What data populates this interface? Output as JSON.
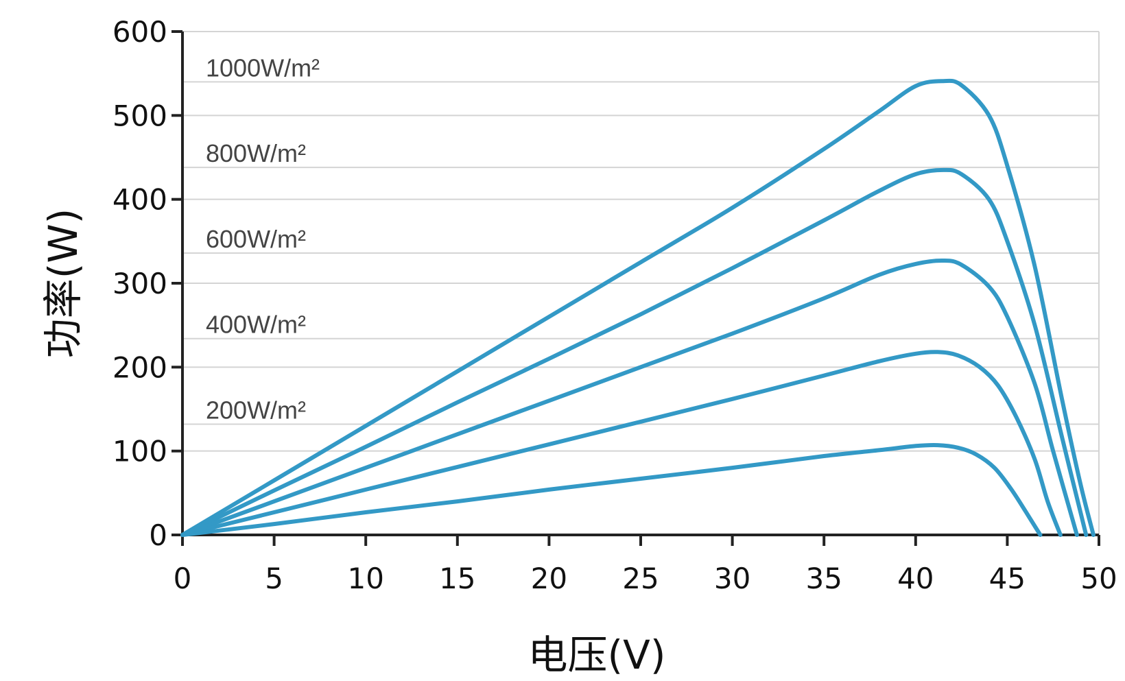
{
  "chart_data": {
    "type": "line",
    "title": "",
    "xlabel": "电压(V)",
    "ylabel": "功率(W)",
    "xlim": [
      0,
      50
    ],
    "ylim": [
      0,
      600
    ],
    "x_ticks": [
      "0",
      "5",
      "10",
      "15",
      "20",
      "25",
      "30",
      "35",
      "40",
      "45",
      "50"
    ],
    "y_ticks": [
      "0",
      "100",
      "200",
      "300",
      "400",
      "500",
      "600"
    ],
    "grid": "horizontal",
    "series_color": "#3399c6",
    "series": [
      {
        "name": "1000W/m²",
        "label_y": 540,
        "points": [
          [
            0,
            0
          ],
          [
            5,
            65
          ],
          [
            10,
            130
          ],
          [
            15,
            195
          ],
          [
            20,
            260
          ],
          [
            25,
            325
          ],
          [
            30,
            390
          ],
          [
            35,
            460
          ],
          [
            38,
            505
          ],
          [
            40,
            535
          ],
          [
            41.5,
            541
          ],
          [
            42.5,
            536
          ],
          [
            44,
            500
          ],
          [
            45,
            440
          ],
          [
            46.5,
            320
          ],
          [
            48,
            160
          ],
          [
            49,
            60
          ],
          [
            49.7,
            0
          ]
        ]
      },
      {
        "name": "800W/m²",
        "label_y": 438,
        "points": [
          [
            0,
            0
          ],
          [
            5,
            53
          ],
          [
            10,
            105
          ],
          [
            15,
            158
          ],
          [
            20,
            210
          ],
          [
            25,
            263
          ],
          [
            30,
            318
          ],
          [
            35,
            375
          ],
          [
            38,
            410
          ],
          [
            40,
            430
          ],
          [
            41.5,
            435
          ],
          [
            42.5,
            430
          ],
          [
            44,
            400
          ],
          [
            45,
            350
          ],
          [
            46.5,
            250
          ],
          [
            48,
            115
          ],
          [
            49.3,
            0
          ]
        ]
      },
      {
        "name": "600W/m²",
        "label_y": 336,
        "points": [
          [
            0,
            0
          ],
          [
            5,
            40
          ],
          [
            10,
            80
          ],
          [
            15,
            120
          ],
          [
            20,
            160
          ],
          [
            25,
            200
          ],
          [
            30,
            240
          ],
          [
            35,
            282
          ],
          [
            38,
            310
          ],
          [
            40,
            323
          ],
          [
            41.5,
            327
          ],
          [
            42.5,
            322
          ],
          [
            44,
            296
          ],
          [
            45,
            260
          ],
          [
            46.5,
            180
          ],
          [
            47.5,
            100
          ],
          [
            48.8,
            0
          ]
        ]
      },
      {
        "name": "400W/m²",
        "label_y": 234,
        "points": [
          [
            0,
            0
          ],
          [
            5,
            27
          ],
          [
            10,
            54
          ],
          [
            15,
            81
          ],
          [
            20,
            108
          ],
          [
            25,
            135
          ],
          [
            30,
            162
          ],
          [
            35,
            190
          ],
          [
            38,
            207
          ],
          [
            40,
            216
          ],
          [
            41.2,
            218
          ],
          [
            42.3,
            214
          ],
          [
            43.5,
            200
          ],
          [
            44.5,
            178
          ],
          [
            45.5,
            140
          ],
          [
            46.5,
            90
          ],
          [
            47.2,
            40
          ],
          [
            47.9,
            0
          ]
        ]
      },
      {
        "name": "200W/m²",
        "label_y": 132,
        "points": [
          [
            0,
            0
          ],
          [
            5,
            13
          ],
          [
            10,
            27
          ],
          [
            15,
            40
          ],
          [
            20,
            54
          ],
          [
            25,
            67
          ],
          [
            30,
            80
          ],
          [
            35,
            94
          ],
          [
            38,
            101
          ],
          [
            40,
            106
          ],
          [
            41.2,
            107
          ],
          [
            42.3,
            104
          ],
          [
            43.3,
            96
          ],
          [
            44.3,
            80
          ],
          [
            45.2,
            55
          ],
          [
            46,
            28
          ],
          [
            46.8,
            0
          ]
        ]
      }
    ]
  }
}
